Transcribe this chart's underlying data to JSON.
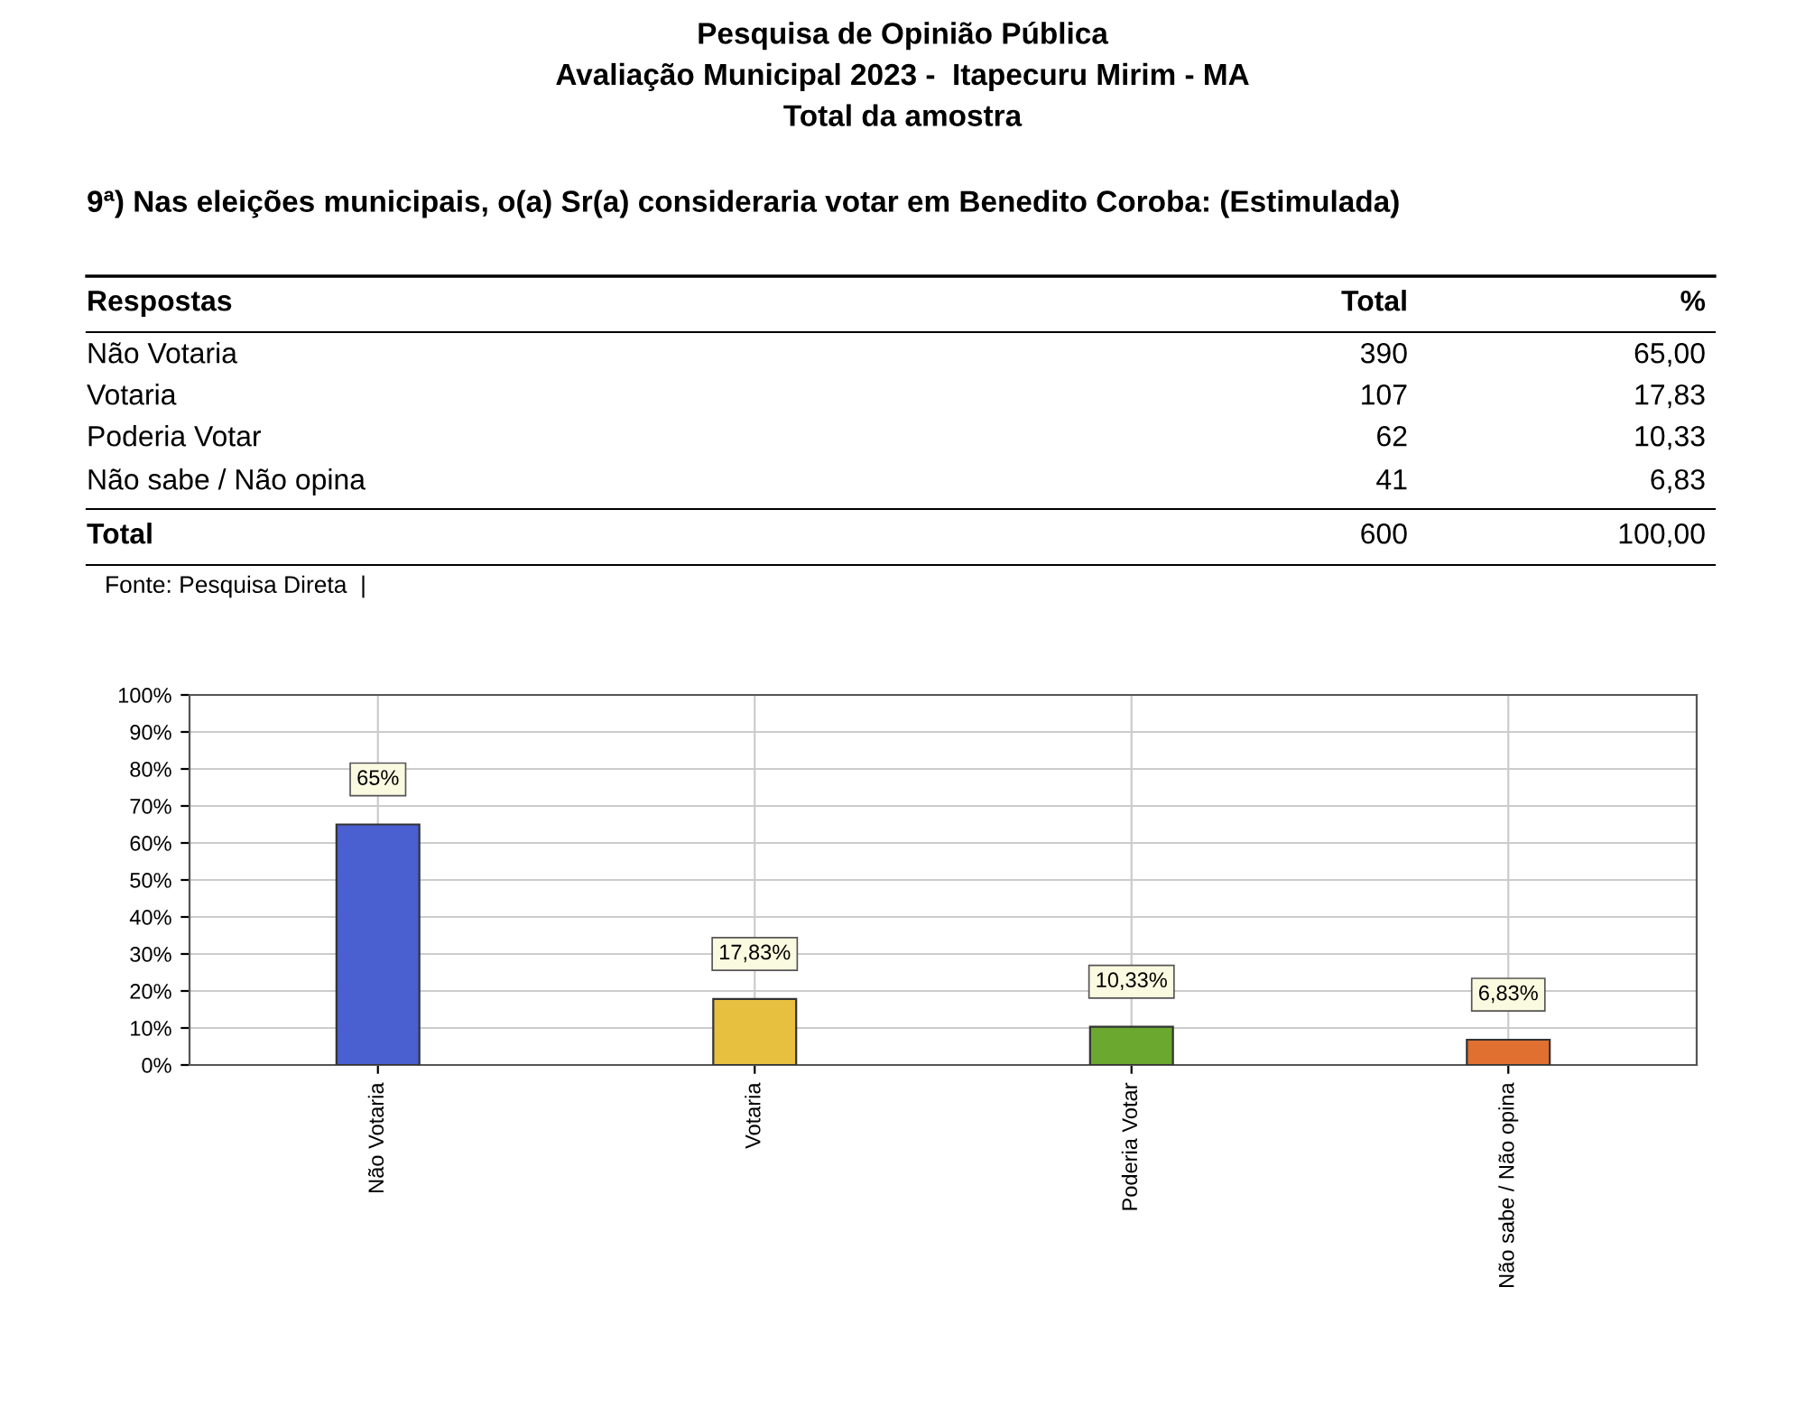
{
  "chart_data": {
    "type": "bar",
    "title": "Pesquisa de Opinião Pública\nAvaliação Municipal 2023 -  Itapecuru Mirim - MA\nTotal da amostra",
    "subtitle": "9ª) Nas eleições municipais, o(a) Sr(a) consideraria votar em Benedito Coroba: (Estimulada)",
    "categories": [
      "Não Votaria",
      "Votaria",
      "Poderia Votar",
      "Não sabe / Não opina"
    ],
    "values": [
      65,
      17.83,
      10.33,
      6.83
    ],
    "colors": [
      "#4a5fd0",
      "#e8c040",
      "#6aa830",
      "#e07030"
    ],
    "value_labels": [
      "65%",
      "17,83%",
      "10,33%",
      "6,83%"
    ],
    "ylim": [
      0,
      100
    ],
    "yticks": [
      {
        "value": 0,
        "label": "0%"
      },
      {
        "value": 10,
        "label": "10%"
      },
      {
        "value": 20,
        "label": "20%"
      },
      {
        "value": 30,
        "label": "30%"
      },
      {
        "value": 40,
        "label": "40%"
      },
      {
        "value": 50,
        "label": "50%"
      },
      {
        "value": 60,
        "label": "60%"
      },
      {
        "value": 70,
        "label": "70%"
      },
      {
        "value": 80,
        "label": "80%"
      },
      {
        "value": 90,
        "label": "90%"
      },
      {
        "value": 100,
        "label": "100%"
      }
    ],
    "grid": true,
    "annotations": [
      "Respostas",
      "Total",
      "%",
      "Não Votaria",
      "390",
      "65,00",
      "Votaria",
      "107",
      "17,83",
      "Poderia Votar",
      "62",
      "10,33",
      "Não sabe / Não opina",
      "41",
      "6,83",
      "Total",
      "600",
      "100,00",
      "Fonte: Pesquisa Direta  |"
    ]
  }
}
